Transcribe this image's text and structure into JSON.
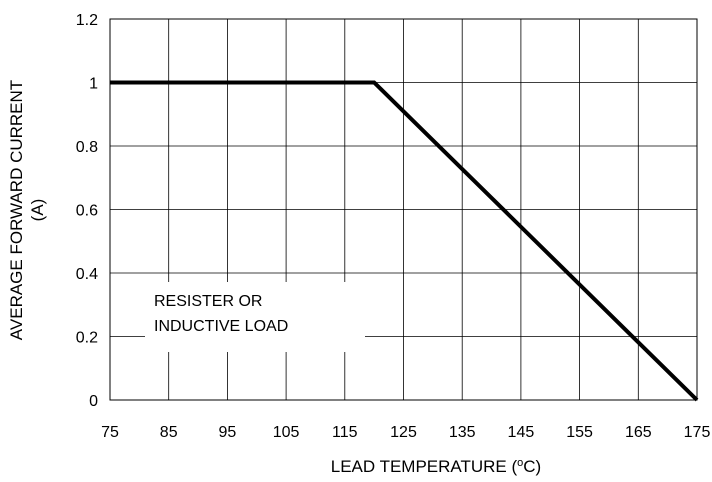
{
  "chart_data": {
    "type": "line",
    "title": "",
    "xlabel_main": "LEAD TEMPERATURE (",
    "xlabel_sup": "o",
    "xlabel_end": "C)",
    "ylabel_line1": "AVERAGE FORWARD CURRENT",
    "ylabel_line2": "(A)",
    "xlim": [
      75,
      175
    ],
    "ylim": [
      0,
      1.2
    ],
    "x_ticks": [
      75,
      85,
      95,
      105,
      115,
      125,
      135,
      145,
      155,
      165,
      175
    ],
    "y_ticks": [
      0,
      0.2,
      0.4,
      0.6,
      0.8,
      1,
      1.2
    ],
    "grid": true,
    "series": [
      {
        "x": [
          75,
          120,
          175
        ],
        "y": [
          1,
          1,
          0
        ]
      }
    ],
    "annotation": {
      "line1": "RESISTER OR",
      "line2": "INDUCTIVE LOAD",
      "anchor_x": 75,
      "anchor_y": 0.32
    },
    "colors": {
      "line": "#000000",
      "grid": "#000000",
      "background": "#ffffff"
    }
  }
}
